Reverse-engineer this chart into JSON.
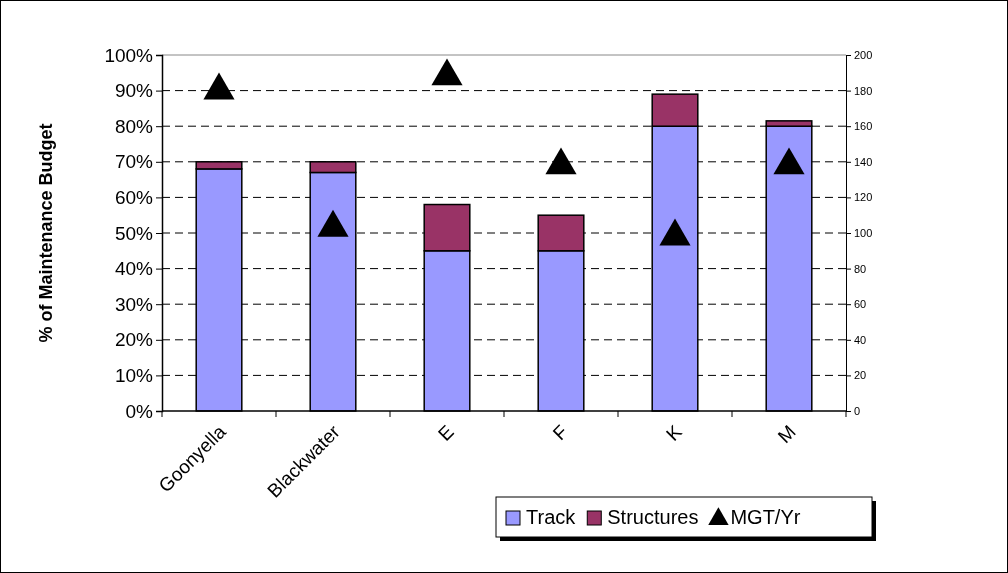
{
  "chart_data": {
    "type": "bar",
    "ylabel": "% of Maintenance Budget",
    "categories": [
      "Goonyella",
      "Blackwater",
      "E",
      "F",
      "K",
      "M"
    ],
    "stacked": true,
    "series": [
      {
        "name": "Track",
        "color": "#9999ff",
        "values": [
          68,
          67,
          45,
          45,
          80,
          80
        ]
      },
      {
        "name": "Structures",
        "color": "#993366",
        "values": [
          2,
          3,
          13,
          10,
          9,
          1.5
        ]
      },
      {
        "name": "MGT/Yr",
        "type": "scatter",
        "axis": "y2",
        "color": "#000000",
        "marker": "triangle",
        "values": [
          180,
          103,
          188,
          138,
          98,
          138
        ]
      }
    ],
    "ylim": [
      0,
      100
    ],
    "yticks": [
      {
        "value": 0,
        "label": "0%"
      },
      {
        "value": 10,
        "label": "10%"
      },
      {
        "value": 20,
        "label": "20%"
      },
      {
        "value": 30,
        "label": "30%"
      },
      {
        "value": 40,
        "label": "40%"
      },
      {
        "value": 50,
        "label": "50%"
      },
      {
        "value": 60,
        "label": "60%"
      },
      {
        "value": 70,
        "label": "70%"
      },
      {
        "value": 80,
        "label": "80%"
      },
      {
        "value": 90,
        "label": "90%"
      },
      {
        "value": 100,
        "label": "100%"
      }
    ],
    "y2lim": [
      0,
      200
    ],
    "y2ticks": [
      0,
      20,
      40,
      60,
      80,
      100,
      120,
      140,
      160,
      180,
      200
    ],
    "grid": "y",
    "legend": "bottom right"
  }
}
